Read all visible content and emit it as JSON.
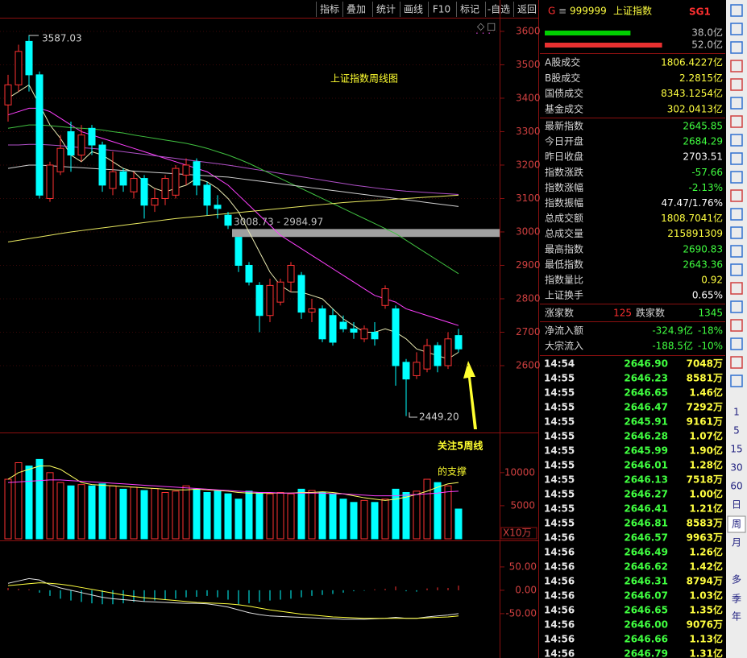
{
  "toolbar": [
    "指标",
    "叠加",
    "统计",
    "画线",
    "F10",
    "标记",
    "-自选",
    "返回"
  ],
  "chart_data": {
    "type": "candlestick",
    "title": "上证指数周线图",
    "annotation": [
      "关注5周线",
      "的支撑"
    ],
    "high_label": "3587.03",
    "low_label": "2449.20",
    "gap_label": "3008.73 - 2984.97",
    "up_color": "#ff3232",
    "down_color": "#00ffff",
    "open": [
      3380,
      3440,
      3570,
      3470,
      3100,
      3180,
      3300,
      3230,
      3310,
      3260,
      3130,
      3180,
      3120,
      3160,
      3080,
      3100,
      3110,
      3170,
      3210,
      3140,
      3080,
      3050,
      2984,
      2900,
      2840,
      2750,
      2790,
      2850,
      2870,
      2760,
      2770,
      2750,
      2730,
      2710,
      2680,
      2700,
      2780,
      2770,
      2610,
      2570,
      2590,
      2660,
      2600,
      2690
    ],
    "high": [
      3470,
      3560,
      3587.03,
      3480,
      3210,
      3290,
      3330,
      3320,
      3320,
      3270,
      3240,
      3190,
      3180,
      3170,
      3130,
      3170,
      3200,
      3220,
      3220,
      3150,
      3110,
      3060,
      2984.97,
      2910,
      2850,
      2860,
      2860,
      2910,
      2880,
      2800,
      2780,
      2770,
      2750,
      2730,
      2720,
      2730,
      2840,
      2780,
      2620,
      2640,
      2680,
      2670,
      2700,
      2710
    ],
    "low": [
      3330,
      3420,
      3420,
      3100,
      3090,
      3170,
      3180,
      3210,
      3230,
      3120,
      3110,
      3120,
      3100,
      3040,
      3060,
      3080,
      3100,
      3140,
      3110,
      3050,
      3040,
      3008.73,
      2880,
      2840,
      2700,
      2730,
      2780,
      2820,
      2740,
      2730,
      2670,
      2660,
      2700,
      2680,
      2670,
      2660,
      2770,
      2540,
      2449.2,
      2560,
      2580,
      2580,
      2590,
      2640
    ],
    "close": [
      3440,
      3540,
      3470,
      3110,
      3200,
      3250,
      3230,
      3290,
      3260,
      3140,
      3180,
      3140,
      3160,
      3080,
      3100,
      3160,
      3190,
      3200,
      3140,
      3080,
      3070,
      3020,
      2900,
      2850,
      2750,
      2840,
      2850,
      2900,
      2760,
      2770,
      2680,
      2670,
      2710,
      2700,
      2710,
      2680,
      2830,
      2600,
      2560,
      2610,
      2660,
      2600,
      2680,
      2650
    ],
    "ylim": [
      2400,
      3636
    ],
    "yticks": [
      2600,
      2700,
      2800,
      2900,
      3000,
      3100,
      3200,
      3300,
      3400,
      3500,
      3600
    ],
    "ma_lines": [
      {
        "color": "#e8e8b0",
        "values": [
          3400,
          3420,
          3440,
          3380,
          3320,
          3280,
          3230,
          3210,
          3240,
          3230,
          3210,
          3190,
          3180,
          3150,
          3130,
          3120,
          3130,
          3140,
          3160,
          3150,
          3130,
          3100,
          3060,
          3000,
          2940,
          2880,
          2840,
          2820,
          2820,
          2810,
          2800,
          2770,
          2740,
          2720,
          2700,
          2700,
          2710,
          2700,
          2680,
          2650,
          2640,
          2630,
          2620,
          2640
        ]
      },
      {
        "color": "#ff40ff",
        "values": [
          3350,
          3360,
          3370,
          3370,
          3360,
          3340,
          3320,
          3300,
          3290,
          3280,
          3270,
          3260,
          3250,
          3240,
          3230,
          3220,
          3210,
          3200,
          3190,
          3180,
          3160,
          3140,
          3110,
          3080,
          3050,
          3020,
          2990,
          2970,
          2950,
          2930,
          2910,
          2890,
          2870,
          2850,
          2830,
          2810,
          2800,
          2790,
          2770,
          2760,
          2750,
          2740,
          2730,
          2720
        ]
      },
      {
        "color": "#b050c8",
        "values": [
          3260,
          3260,
          3262,
          3262,
          3260,
          3258,
          3255,
          3252,
          3250,
          3247,
          3244,
          3240,
          3236,
          3232,
          3228,
          3224,
          3220,
          3216,
          3212,
          3208,
          3204,
          3200,
          3195,
          3190,
          3185,
          3180,
          3175,
          3170,
          3165,
          3160,
          3155,
          3150,
          3145,
          3140,
          3136,
          3132,
          3128,
          3125,
          3122,
          3120,
          3118,
          3116,
          3114,
          3112
        ]
      },
      {
        "color": "#40c040",
        "values": [
          3310,
          3315,
          3320,
          3320,
          3318,
          3315,
          3312,
          3310,
          3308,
          3305,
          3300,
          3296,
          3290,
          3285,
          3280,
          3275,
          3270,
          3265,
          3258,
          3250,
          3240,
          3230,
          3218,
          3205,
          3190,
          3175,
          3160,
          3145,
          3130,
          3115,
          3100,
          3085,
          3070,
          3055,
          3040,
          3025,
          3010,
          2995,
          2975,
          2955,
          2935,
          2915,
          2895,
          2875
        ]
      },
      {
        "color": "#d0d0d0",
        "values": [
          3190,
          3195,
          3200,
          3200,
          3198,
          3196,
          3194,
          3192,
          3190,
          3188,
          3186,
          3184,
          3182,
          3180,
          3178,
          3176,
          3174,
          3172,
          3170,
          3168,
          3166,
          3164,
          3160,
          3156,
          3152,
          3148,
          3144,
          3140,
          3136,
          3132,
          3128,
          3124,
          3120,
          3116,
          3112,
          3108,
          3104,
          3100,
          3096,
          3092,
          3088,
          3084,
          3080,
          3076
        ]
      },
      {
        "color": "#e8e860",
        "values": [
          2970,
          2975,
          2980,
          2985,
          2990,
          2995,
          3000,
          3004,
          3008,
          3012,
          3016,
          3020,
          3024,
          3028,
          3032,
          3036,
          3040,
          3043,
          3046,
          3049,
          3052,
          3055,
          3058,
          3061,
          3064,
          3067,
          3070,
          3073,
          3076,
          3079,
          3082,
          3085,
          3088,
          3090,
          3092,
          3094,
          3096,
          3098,
          3100,
          3102,
          3104,
          3106,
          3108,
          3110
        ]
      }
    ],
    "volume": {
      "unit_label": "X10万",
      "ylim": [
        0,
        15700
      ],
      "yticks": [
        5000,
        10000
      ],
      "values": [
        9000,
        11500,
        11000,
        12000,
        10000,
        8500,
        8000,
        8200,
        8000,
        8300,
        8000,
        7500,
        7800,
        7300,
        7600,
        7000,
        7200,
        8000,
        7500,
        7000,
        7200,
        6800,
        6000,
        7200,
        7000,
        6800,
        7000,
        6800,
        7500,
        7300,
        7000,
        6800,
        6000,
        5500,
        5800,
        5500,
        6000,
        7500,
        7000,
        7200,
        9000,
        8500,
        8000,
        4500
      ],
      "ma_lines": [
        {
          "color": "#ffff60",
          "values": [
            9000,
            10000,
            10500,
            11000,
            11000,
            10500,
            9500,
            8500,
            8200,
            8100,
            8000,
            7900,
            7800,
            7700,
            7600,
            7500,
            7400,
            7400,
            7500,
            7400,
            7300,
            7200,
            7000,
            6900,
            6900,
            6900,
            6900,
            6900,
            7000,
            7000,
            7100,
            7000,
            6800,
            6500,
            6200,
            6000,
            5800,
            6000,
            6300,
            6700,
            7200,
            7800,
            8300,
            8500
          ]
        },
        {
          "color": "#ff40ff",
          "values": [
            8500,
            8600,
            8700,
            8800,
            8900,
            8900,
            8800,
            8700,
            8600,
            8500,
            8400,
            8300,
            8200,
            8100,
            8000,
            7900,
            7800,
            7700,
            7600,
            7500,
            7400,
            7300,
            7200,
            7100,
            7000,
            7000,
            6900,
            6900,
            6900,
            6900,
            6900,
            6800,
            6800,
            6700,
            6600,
            6500,
            6500,
            6500,
            6600,
            6700,
            6800,
            6900,
            7100,
            7200
          ]
        }
      ]
    },
    "macd": {
      "ylim": [
        -145,
        74
      ],
      "yticks": [
        {
          "value": -50,
          "label": "-50.00"
        },
        {
          "value": 0,
          "label": "0.00"
        },
        {
          "value": 50,
          "label": "50.00"
        }
      ],
      "histogram": [
        5,
        3,
        2,
        -5,
        -12,
        -18,
        -22,
        -25,
        -28,
        -30,
        -30,
        -28,
        -25,
        -24,
        -22,
        -20,
        -18,
        -15,
        -14,
        -12,
        -15,
        -20,
        -30,
        -28,
        -25,
        -22,
        -20,
        -18,
        -15,
        -12,
        -10,
        -8,
        -5,
        -2,
        -1,
        2,
        3,
        8,
        -2,
        -3,
        4,
        6,
        5,
        10
      ],
      "lines": [
        {
          "color": "#e0e0e0",
          "values": [
            15,
            20,
            25,
            22,
            12,
            5,
            0,
            -5,
            -10,
            -15,
            -18,
            -20,
            -22,
            -24,
            -25,
            -26,
            -27,
            -28,
            -28,
            -29,
            -32,
            -36,
            -42,
            -48,
            -52,
            -55,
            -56,
            -57,
            -58,
            -59,
            -60,
            -61,
            -62,
            -62,
            -62,
            -61,
            -60,
            -58,
            -60,
            -60,
            -57,
            -55,
            -53,
            -50
          ]
        },
        {
          "color": "#ffff40",
          "values": [
            10,
            12,
            14,
            16,
            15,
            13,
            10,
            6,
            2,
            -2,
            -6,
            -10,
            -13,
            -16,
            -18,
            -20,
            -22,
            -24,
            -26,
            -27,
            -28,
            -29,
            -31,
            -34,
            -38,
            -42,
            -45,
            -48,
            -51,
            -53,
            -55,
            -57,
            -58,
            -59,
            -60,
            -60,
            -60,
            -60,
            -60,
            -60,
            -59,
            -58,
            -57,
            -55
          ]
        }
      ]
    }
  },
  "quote_panel": {
    "market": "G",
    "menu": "≡",
    "code": "999999",
    "name": "上证指数",
    "badge": "SG1",
    "bars": [
      {
        "value": 38.0,
        "label": "38.0亿",
        "color": "#00d000"
      },
      {
        "value": 52.0,
        "label": "52.0亿",
        "color": "#e83030"
      }
    ],
    "rows": [
      {
        "label": "A股成交",
        "value": "1806.4227亿",
        "color": "#ffff40"
      },
      {
        "label": "B股成交",
        "value": "2.2815亿",
        "color": "#ffff40"
      },
      {
        "label": "国债成交",
        "value": "8343.1254亿",
        "color": "#ffff40"
      },
      {
        "label": "基金成交",
        "value": "302.0413亿",
        "color": "#ffff40"
      },
      {
        "label": "最新指数",
        "value": "2645.85",
        "color": "#40ff40"
      },
      {
        "label": "今日开盘",
        "value": "2684.29",
        "color": "#40ff40"
      },
      {
        "label": "昨日收盘",
        "value": "2703.51",
        "color": "#ffffff"
      },
      {
        "label": "指数涨跌",
        "value": "-57.66",
        "color": "#40ff40"
      },
      {
        "label": "指数涨幅",
        "value": "-2.13%",
        "color": "#40ff40"
      },
      {
        "label": "指数振幅",
        "value": "47.47/1.76%",
        "color": "#ffffff"
      },
      {
        "label": "总成交额",
        "value": "1808.7041亿",
        "color": "#ffff40"
      },
      {
        "label": "总成交量",
        "value": "215891309",
        "color": "#ffff40"
      },
      {
        "label": "最高指数",
        "value": "2690.83",
        "color": "#40ff40"
      },
      {
        "label": "最低指数",
        "value": "2643.36",
        "color": "#40ff40"
      },
      {
        "label": "指数量比",
        "value": "0.92",
        "color": "#ffff40"
      },
      {
        "label": "上证换手",
        "value": "0.65%",
        "color": "#ffffff"
      }
    ],
    "breadth": {
      "up_label": "涨家数",
      "up": "125",
      "down_label": "跌家数",
      "down": "1345"
    },
    "flows": [
      {
        "label": "净流入额",
        "value": "-324.9亿",
        "pct": "-18%"
      },
      {
        "label": "大宗流入",
        "value": "-188.5亿",
        "pct": "-10%"
      }
    ],
    "ticks": [
      [
        "14:54",
        "2646.90",
        "7048万"
      ],
      [
        "14:55",
        "2646.23",
        "8581万"
      ],
      [
        "14:55",
        "2646.65",
        "1.46亿"
      ],
      [
        "14:55",
        "2646.47",
        "7292万"
      ],
      [
        "14:55",
        "2645.91",
        "9161万"
      ],
      [
        "14:55",
        "2646.28",
        "1.07亿"
      ],
      [
        "14:55",
        "2645.99",
        "1.90亿"
      ],
      [
        "14:55",
        "2646.01",
        "1.28亿"
      ],
      [
        "14:55",
        "2646.13",
        "7518万"
      ],
      [
        "14:55",
        "2646.27",
        "1.00亿"
      ],
      [
        "14:55",
        "2646.41",
        "1.21亿"
      ],
      [
        "14:55",
        "2646.81",
        "8583万"
      ],
      [
        "14:56",
        "2646.57",
        "9963万"
      ],
      [
        "14:56",
        "2646.49",
        "1.26亿"
      ],
      [
        "14:56",
        "2646.62",
        "1.42亿"
      ],
      [
        "14:56",
        "2646.31",
        "8794万"
      ],
      [
        "14:56",
        "2646.07",
        "1.03亿"
      ],
      [
        "14:56",
        "2646.65",
        "1.35亿"
      ],
      [
        "14:56",
        "2646.00",
        "9076万"
      ],
      [
        "14:56",
        "2646.66",
        "1.13亿"
      ],
      [
        "14:56",
        "2646.79",
        "1.31亿"
      ]
    ]
  },
  "sidebar": [
    "1",
    "5",
    "15",
    "30",
    "60",
    "日",
    "周",
    "月",
    "多",
    "季",
    "年"
  ]
}
